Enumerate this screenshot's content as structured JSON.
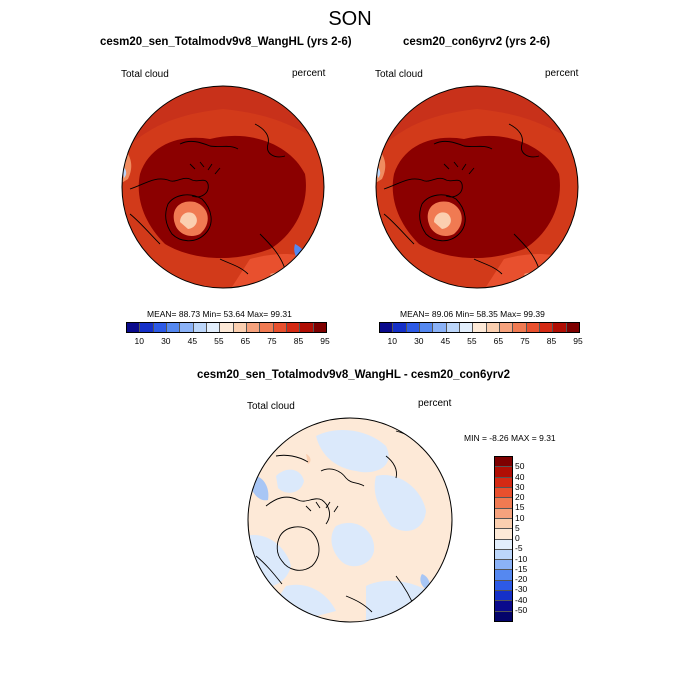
{
  "figure": {
    "season": "SON"
  },
  "panel1": {
    "title": "cesm20_sen_Totalmodv9v8_WangHL (yrs 2-6)",
    "var_label": "Total cloud",
    "units": "percent",
    "stats": "MEAN=  88.73  Min=  53.64  Max=  99.31"
  },
  "panel2": {
    "title": "cesm20_con6yrv2 (yrs 2-6)",
    "var_label": "Total cloud",
    "units": "percent",
    "stats": "MEAN=  89.06  Min=  58.35  Max=  99.39"
  },
  "diff": {
    "title": "cesm20_sen_Totalmodv9v8_WangHL - cesm20_con6yrv2",
    "var_label": "Total cloud",
    "units": "percent",
    "minmax": "MIN =  -8.26 MAX =   9.31"
  },
  "colorbar_abs": {
    "tick_labels": [
      "10",
      "30",
      "45",
      "55",
      "65",
      "75",
      "85",
      "95"
    ],
    "colors": [
      "#0a0a8c",
      "#1530c8",
      "#2d5ae6",
      "#5588f0",
      "#8bb2f7",
      "#bcd6fa",
      "#e2eefc",
      "#fde9d7",
      "#fbcfb0",
      "#f6a27d",
      "#f07a52",
      "#e8502e",
      "#d42a14",
      "#b00e04",
      "#7e0000"
    ]
  },
  "colorbar_diff": {
    "labels": [
      "50",
      "40",
      "30",
      "20",
      "15",
      "10",
      "5",
      "0",
      "-5",
      "-10",
      "-15",
      "-20",
      "-30",
      "-40",
      "-50"
    ],
    "colors": [
      "#7e0000",
      "#b00e04",
      "#d42a14",
      "#e8502e",
      "#f07a52",
      "#f6a27d",
      "#fbcfb0",
      "#fde9d7",
      "#e2eefc",
      "#bcd6fa",
      "#8bb2f7",
      "#5588f0",
      "#2d5ae6",
      "#1530c8",
      "#0a0a8c",
      "#04046a"
    ]
  },
  "colors": {
    "land": "#000000",
    "dark_red": "#8b0000",
    "mid_red": "#cf2a12",
    "orange": "#ee6238",
    "light_diff": "#fde9d7",
    "blue_diff": "#dbe9fb"
  }
}
